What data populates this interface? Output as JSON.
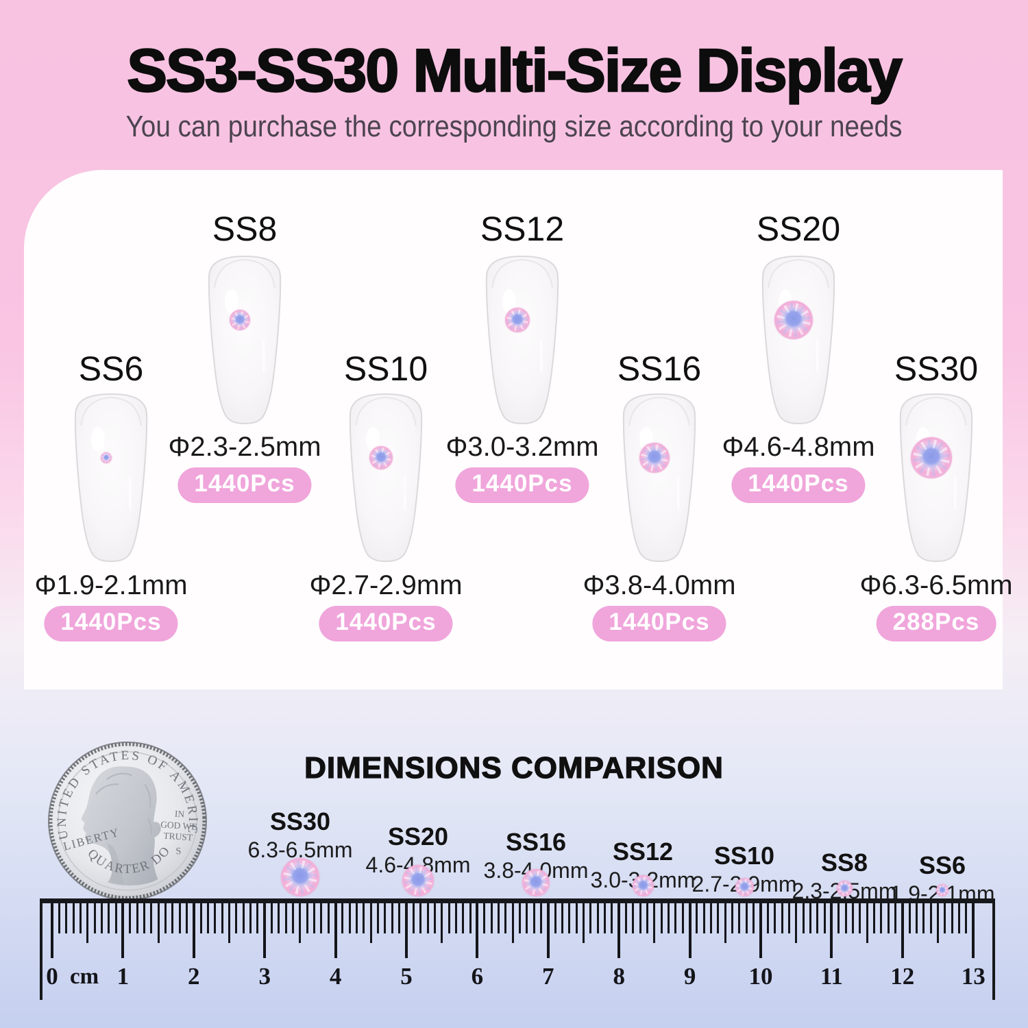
{
  "header": {
    "title": "SS3-SS30 Multi-Size Display",
    "subtitle": "You can purchase the corresponding size according to your needs"
  },
  "display": {
    "items": [
      {
        "label": "SS6",
        "diameter": "Φ1.9-2.1mm",
        "count": "1440Pcs"
      },
      {
        "label": "SS8",
        "diameter": "Φ2.3-2.5mm",
        "count": "1440Pcs"
      },
      {
        "label": "SS10",
        "diameter": "Φ2.7-2.9mm",
        "count": "1440Pcs"
      },
      {
        "label": "SS12",
        "diameter": "Φ3.0-3.2mm",
        "count": "1440Pcs"
      },
      {
        "label": "SS16",
        "diameter": "Φ3.8-4.0mm",
        "count": "1440Pcs"
      },
      {
        "label": "SS20",
        "diameter": "Φ4.6-4.8mm",
        "count": "1440Pcs"
      },
      {
        "label": "SS30",
        "diameter": "Φ6.3-6.5mm",
        "count": "288Pcs"
      }
    ]
  },
  "comparison": {
    "title": "DIMENSIONS COMPARISON",
    "items": [
      {
        "label": "SS30",
        "size": "6.3-6.5mm"
      },
      {
        "label": "SS20",
        "size": "4.6-4.8mm"
      },
      {
        "label": "SS16",
        "size": "3.8-4.0mm"
      },
      {
        "label": "SS12",
        "size": "3.0-3.2mm"
      },
      {
        "label": "SS10",
        "size": "2.7-2.9mm"
      },
      {
        "label": "SS8",
        "size": "2.3-2.5mm"
      },
      {
        "label": "SS6",
        "size": "1.9-2.1mm"
      }
    ],
    "coin": {
      "top_text": "UNITED STATES OF AMERICA",
      "left_text": "LIBERTY",
      "right_lines": [
        "IN",
        "GOD WE",
        "TRUST"
      ],
      "mint_mark": "S",
      "bottom_text": "QUARTER DOLLAR"
    }
  },
  "ruler": {
    "unit": "cm",
    "numbers": [
      "0",
      "1",
      "2",
      "3",
      "4",
      "5",
      "6",
      "7",
      "8",
      "9",
      "10",
      "11",
      "12",
      "13"
    ]
  },
  "colors": {
    "background_top": "#f8c2e1",
    "background_bottom": "#c5cfef",
    "panel": "#fffdfe",
    "badge_pink": "#f0a5db",
    "badge_text": "#ffffff",
    "gem_center_blue": "#8c99e8",
    "gem_rim_pink": "#f3aed8",
    "title_black": "#0d0d0d"
  }
}
